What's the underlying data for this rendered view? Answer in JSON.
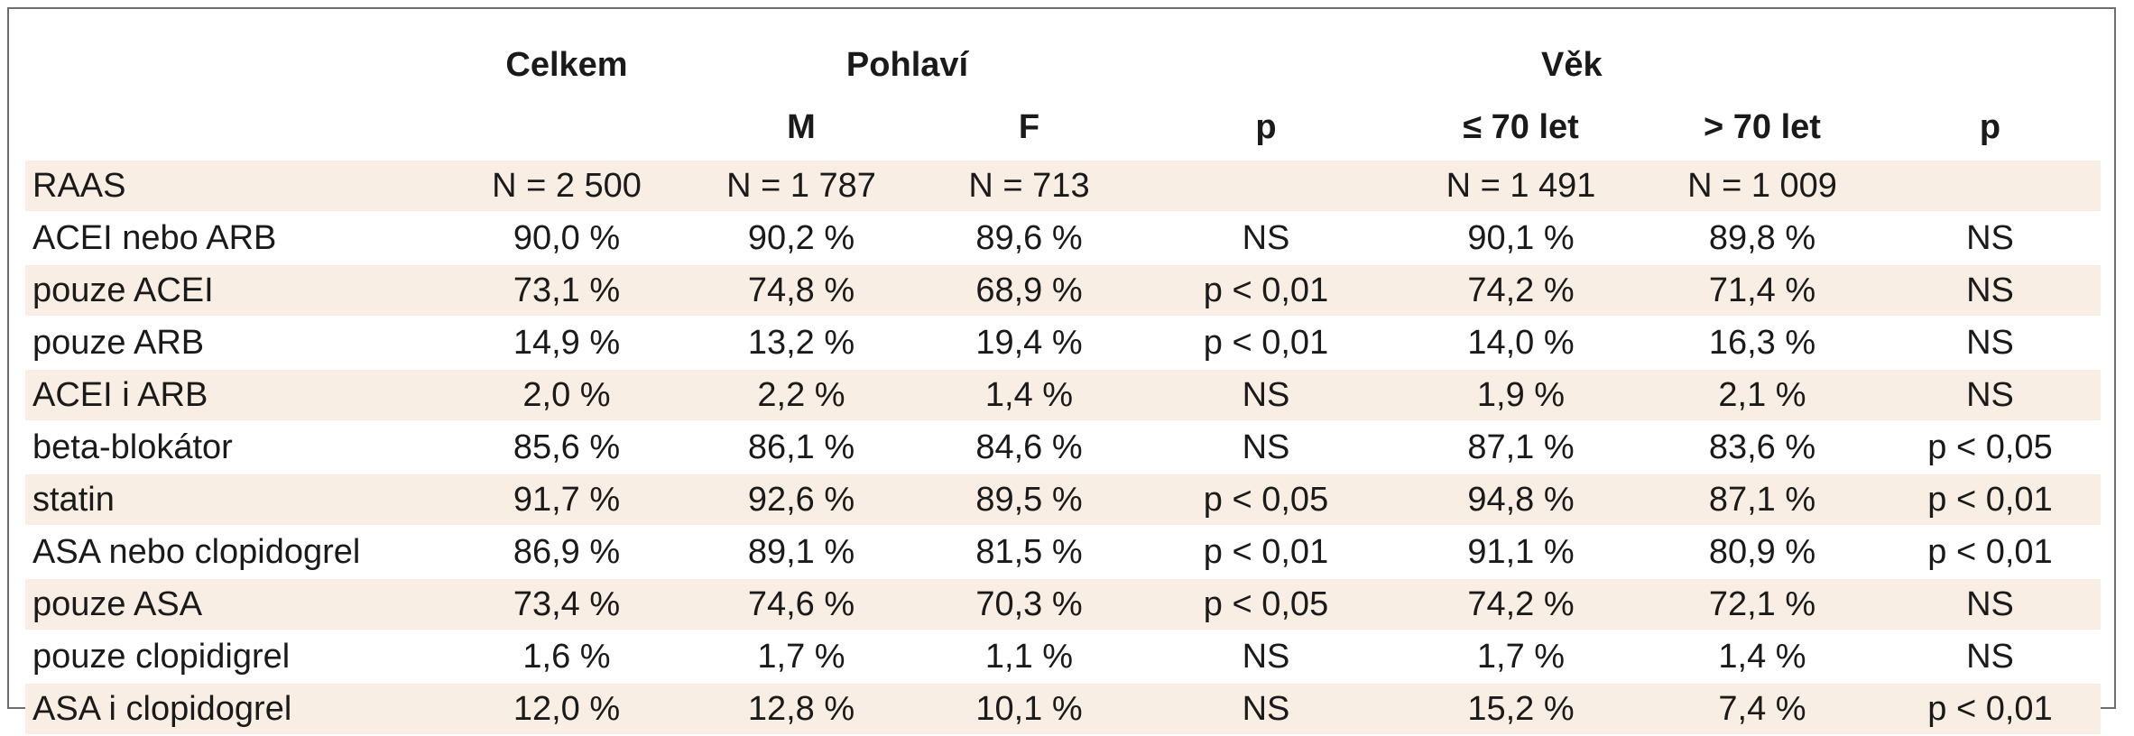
{
  "header": {
    "total": "Celkem",
    "sex_group": "Pohlaví",
    "age_group": "Věk",
    "sub": {
      "m": "M",
      "f": "F",
      "p1": "p",
      "le70": "≤ 70 let",
      "gt70": "> 70 let",
      "p2": "p"
    }
  },
  "rows": [
    {
      "label": "RAAS",
      "total": "N = 2 500",
      "m": "N = 1 787",
      "f": "N = 713",
      "p1": "",
      "le70": "N = 1 491",
      "gt70": "N = 1 009",
      "p2": ""
    },
    {
      "label": "ACEI nebo ARB",
      "total": "90,0 %",
      "m": "90,2 %",
      "f": "89,6 %",
      "p1": "NS",
      "le70": "90,1 %",
      "gt70": "89,8 %",
      "p2": "NS"
    },
    {
      "label": "pouze ACEI",
      "total": "73,1 %",
      "m": "74,8 %",
      "f": "68,9 %",
      "p1": "p < 0,01",
      "le70": "74,2 %",
      "gt70": "71,4 %",
      "p2": "NS"
    },
    {
      "label": "pouze ARB",
      "total": "14,9 %",
      "m": "13,2 %",
      "f": "19,4 %",
      "p1": "p < 0,01",
      "le70": "14,0 %",
      "gt70": "16,3 %",
      "p2": "NS"
    },
    {
      "label": "ACEI i ARB",
      "total": "2,0 %",
      "m": "2,2 %",
      "f": "1,4 %",
      "p1": "NS",
      "le70": "1,9 %",
      "gt70": "2,1 %",
      "p2": "NS"
    },
    {
      "label": "beta-blokátor",
      "total": "85,6 %",
      "m": "86,1 %",
      "f": "84,6 %",
      "p1": "NS",
      "le70": "87,1 %",
      "gt70": "83,6 %",
      "p2": "p < 0,05"
    },
    {
      "label": "statin",
      "total": "91,7 %",
      "m": "92,6 %",
      "f": "89,5 %",
      "p1": "p < 0,05",
      "le70": "94,8 %",
      "gt70": "87,1 %",
      "p2": "p < 0,01"
    },
    {
      "label": "ASA nebo clopidogrel",
      "total": "86,9 %",
      "m": "89,1 %",
      "f": "81,5 %",
      "p1": "p < 0,01",
      "le70": "91,1 %",
      "gt70": "80,9 %",
      "p2": "p < 0,01"
    },
    {
      "label": "pouze ASA",
      "total": "73,4 %",
      "m": "74,6 %",
      "f": "70,3 %",
      "p1": "p < 0,05",
      "le70": "74,2 %",
      "gt70": "72,1 %",
      "p2": "NS"
    },
    {
      "label": "pouze clopidigrel",
      "total": "1,6 %",
      "m": "1,7 %",
      "f": "1,1 %",
      "p1": "NS",
      "le70": "1,7 %",
      "gt70": "1,4 %",
      "p2": "NS"
    },
    {
      "label": "ASA i clopidogrel",
      "total": "12,0 %",
      "m": "12,8 %",
      "f": "10,1 %",
      "p1": "NS",
      "le70": "15,2 %",
      "gt70": "7,4 %",
      "p2": "p < 0,01"
    }
  ],
  "colors": {
    "shade": "#f8eee3",
    "border": "#6e6e6e"
  }
}
